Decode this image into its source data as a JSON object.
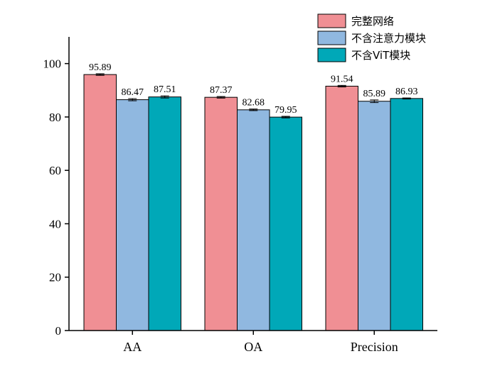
{
  "chart_data": {
    "type": "bar",
    "categories": [
      "AA",
      "OA",
      "Precision"
    ],
    "series": [
      {
        "name": "完整网络",
        "color": "#f08f94",
        "values": [
          95.89,
          87.37,
          91.54
        ],
        "errors": [
          0.3,
          0.3,
          0.3
        ]
      },
      {
        "name": "不含注意力模块",
        "color": "#90b8e0",
        "values": [
          86.47,
          82.68,
          85.89
        ],
        "errors": [
          0.4,
          0.3,
          0.5
        ]
      },
      {
        "name": "不含ViT模块",
        "color": "#00a8b8",
        "values": [
          87.51,
          79.95,
          86.93
        ],
        "errors": [
          0.4,
          0.3,
          0.2
        ]
      }
    ],
    "title": "",
    "xlabel": "",
    "ylabel": "",
    "ylim": [
      0,
      110
    ],
    "yticks": [
      0,
      20,
      40,
      60,
      80,
      100
    ],
    "grid": false,
    "legend": "top-right"
  }
}
